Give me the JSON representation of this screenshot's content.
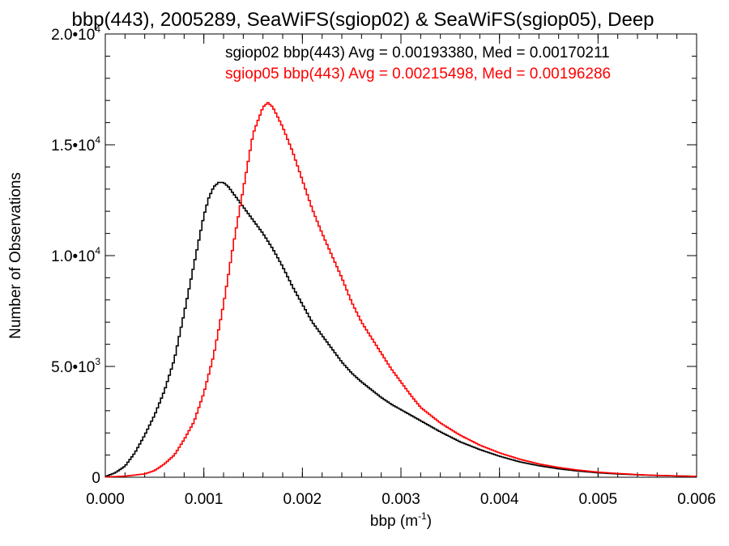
{
  "chart_data": {
    "type": "line",
    "title": "bbp(443), 2005289, SeaWiFS(sgiop02) & SeaWiFS(sgiop05), Deep",
    "xlabel_base": "bbp (m",
    "xlabel_exp": "-1",
    "xlabel_close": ")",
    "ylabel": "Number of Observations",
    "xlim": [
      0.0,
      0.006
    ],
    "ylim": [
      0,
      20000
    ],
    "x_ticks": [
      {
        "value": 0.0,
        "label": "0.000"
      },
      {
        "value": 0.001,
        "label": "0.001"
      },
      {
        "value": 0.002,
        "label": "0.002"
      },
      {
        "value": 0.003,
        "label": "0.003"
      },
      {
        "value": 0.004,
        "label": "0.004"
      },
      {
        "value": 0.005,
        "label": "0.005"
      },
      {
        "value": 0.006,
        "label": "0.006"
      }
    ],
    "y_ticks": [
      {
        "value": 0,
        "mantissa": "0",
        "exponent": ""
      },
      {
        "value": 5000,
        "mantissa": "5.0•10",
        "exponent": "3"
      },
      {
        "value": 10000,
        "mantissa": "1.0•10",
        "exponent": "4"
      },
      {
        "value": 15000,
        "mantissa": "1.5•10",
        "exponent": "4"
      },
      {
        "value": 20000,
        "mantissa": "2.0•10",
        "exponent": "4"
      }
    ],
    "grid": false,
    "legend_position": "top-right",
    "series": [
      {
        "name": "sgiop02 bbp(443) Avg = 0.00193380, Med = 0.00170211",
        "color": "#000000",
        "x": [
          0.0,
          0.0001,
          0.0002,
          0.0003,
          0.0004,
          0.0005,
          0.0006,
          0.0007,
          0.0008,
          0.0009,
          0.001,
          0.00105,
          0.0011,
          0.00115,
          0.0012,
          0.00125,
          0.0013,
          0.0014,
          0.0015,
          0.0016,
          0.0017,
          0.0018,
          0.0019,
          0.002,
          0.0021,
          0.0022,
          0.0023,
          0.0024,
          0.0025,
          0.0026,
          0.0027,
          0.0028,
          0.0029,
          0.003,
          0.0032,
          0.0034,
          0.0036,
          0.0038,
          0.004,
          0.0042,
          0.0044,
          0.0046,
          0.0048,
          0.005,
          0.0052,
          0.0054,
          0.0056,
          0.0058,
          0.006
        ],
        "y": [
          30,
          200,
          500,
          1100,
          1900,
          2800,
          3900,
          5300,
          7400,
          9600,
          11800,
          12600,
          13100,
          13300,
          13300,
          13100,
          12800,
          12200,
          11600,
          11000,
          10300,
          9500,
          8600,
          7800,
          7000,
          6400,
          5800,
          5200,
          4700,
          4300,
          3950,
          3600,
          3300,
          3050,
          2550,
          2050,
          1600,
          1250,
          950,
          700,
          520,
          380,
          280,
          200,
          150,
          110,
          80,
          60,
          40
        ]
      },
      {
        "name": "sgiop05 bbp(443) Avg = 0.00215498, Med = 0.00196286",
        "color": "#ff0000",
        "x": [
          0.0,
          0.0002,
          0.0004,
          0.0005,
          0.0006,
          0.0007,
          0.0008,
          0.0009,
          0.001,
          0.0011,
          0.0012,
          0.0013,
          0.0014,
          0.0015,
          0.0016,
          0.00165,
          0.0017,
          0.0018,
          0.0019,
          0.002,
          0.0021,
          0.0022,
          0.0023,
          0.0024,
          0.0025,
          0.0026,
          0.0027,
          0.0028,
          0.0029,
          0.003,
          0.0031,
          0.0032,
          0.0034,
          0.0036,
          0.0038,
          0.004,
          0.0042,
          0.0044,
          0.0046,
          0.0048,
          0.005,
          0.0052,
          0.0054,
          0.0056,
          0.0058,
          0.006
        ],
        "y": [
          10,
          50,
          150,
          300,
          600,
          1000,
          1700,
          2500,
          3800,
          5500,
          7800,
          10500,
          13000,
          15500,
          16700,
          16900,
          16700,
          15800,
          14700,
          13400,
          12100,
          11000,
          10000,
          9000,
          7900,
          7000,
          6300,
          5600,
          4900,
          4300,
          3700,
          3150,
          2450,
          1900,
          1450,
          1100,
          820,
          600,
          440,
          320,
          230,
          170,
          120,
          85,
          60,
          40
        ]
      }
    ]
  }
}
